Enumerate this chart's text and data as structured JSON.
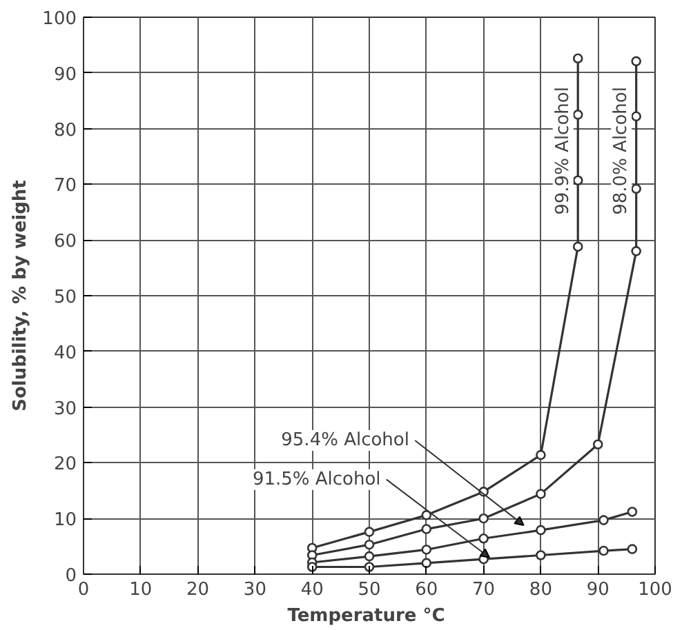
{
  "chart_data": {
    "type": "line",
    "xlabel": "Temperature  °C",
    "ylabel": "Solubility, % by weight",
    "xlim": [
      0,
      100
    ],
    "ylim": [
      0,
      100
    ],
    "xticks": [
      0,
      10,
      20,
      30,
      40,
      50,
      60,
      70,
      80,
      90,
      100
    ],
    "yticks": [
      0,
      10,
      20,
      30,
      40,
      50,
      60,
      70,
      80,
      90,
      100
    ],
    "grid": true,
    "marker": "circle",
    "line_style": "solid",
    "series": [
      {
        "name": "99.9% Alcohol",
        "color": "#333333",
        "x": [
          40,
          50,
          60,
          70,
          80,
          86.5,
          86.5,
          86.5,
          86.5
        ],
        "values": [
          4.7,
          7.6,
          10.6,
          14.8,
          21.4,
          58.8,
          70.7,
          82.5,
          92.6
        ]
      },
      {
        "name": "98.0% Alcohol",
        "color": "#333333",
        "x": [
          40,
          50,
          60,
          70,
          80,
          90,
          96.7,
          96.7,
          96.7,
          96.7
        ],
        "values": [
          3.4,
          5.3,
          8.1,
          10.0,
          14.4,
          23.3,
          58.0,
          69.2,
          82.2,
          92.1
        ]
      },
      {
        "name": "95.4% Alcohol",
        "color": "#333333",
        "x": [
          40,
          50,
          60,
          70,
          80,
          91,
          96
        ],
        "values": [
          2.1,
          3.2,
          4.4,
          6.4,
          7.9,
          9.7,
          11.2
        ]
      },
      {
        "name": "91.5% Alcohol",
        "color": "#333333",
        "x": [
          40,
          50,
          60,
          70,
          80,
          91,
          96
        ],
        "values": [
          1.3,
          1.3,
          2.0,
          2.7,
          3.4,
          4.2,
          4.5
        ]
      }
    ]
  }
}
